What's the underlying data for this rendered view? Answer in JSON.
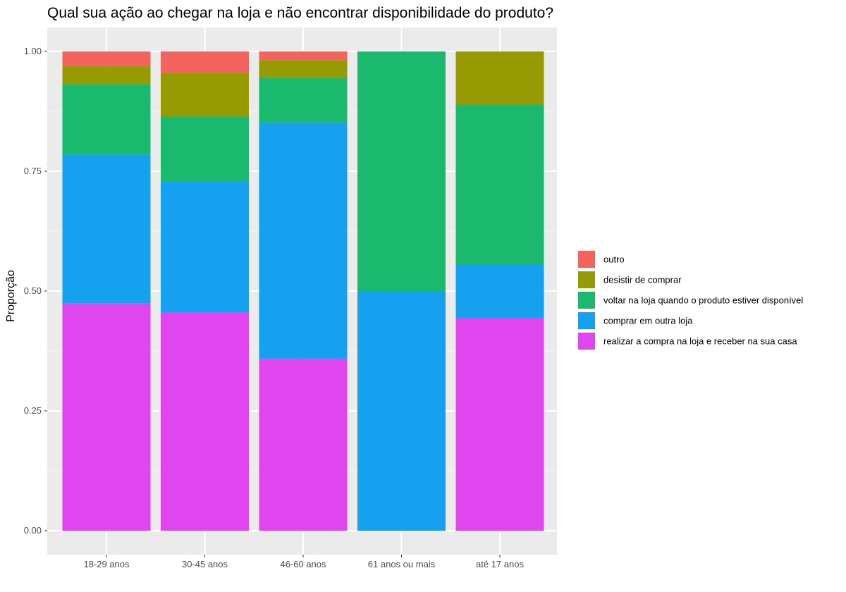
{
  "chart_data": {
    "type": "bar",
    "stacked": true,
    "title": "Qual sua ação ao chegar na loja e não encontrar disponibilidade do produto?",
    "xlabel": "",
    "ylabel": "Proporção",
    "ylim": [
      0,
      1
    ],
    "yticks": [
      "0.00",
      "0.25",
      "0.50",
      "0.75",
      "1.00"
    ],
    "grid": true,
    "legend_position": "right",
    "categories": [
      "18-29 anos",
      "30-45 anos",
      "46-60 anos",
      "61 anos ou mais",
      "até 17 anos"
    ],
    "series": [
      {
        "name": "realizar a compra na loja e receber na sua casa",
        "color": "#E046F0",
        "values": [
          0.474,
          0.455,
          0.359,
          0.0,
          0.444
        ]
      },
      {
        "name": "comprar em outra loja",
        "color": "#16A0F0",
        "values": [
          0.31,
          0.273,
          0.492,
          0.5,
          0.112
        ]
      },
      {
        "name": "voltar na loja quando o produto estiver disponível",
        "color": "#1BB96E",
        "values": [
          0.147,
          0.136,
          0.094,
          0.5,
          0.333
        ]
      },
      {
        "name": "desistir de comprar",
        "color": "#969A03",
        "values": [
          0.038,
          0.091,
          0.036,
          0.0,
          0.111
        ]
      },
      {
        "name": "outro",
        "color": "#F4645E",
        "values": [
          0.031,
          0.045,
          0.019,
          0.0,
          0.0
        ]
      }
    ]
  }
}
